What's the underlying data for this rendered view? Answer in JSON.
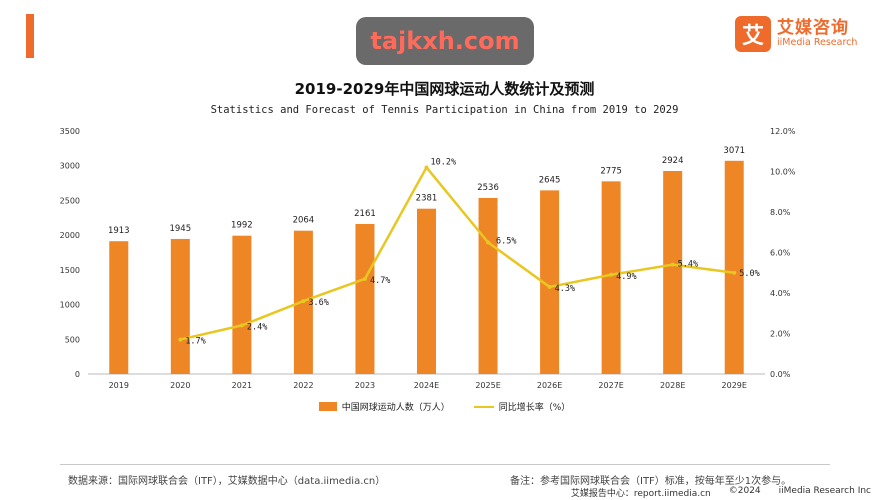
{
  "header": {
    "watermark": "tajkxh.com",
    "logo_mark": "艾",
    "logo_cn": "艾媒咨询",
    "logo_en": "iiMedia Research"
  },
  "chart_data": {
    "type": "bar",
    "title": "2019-2029年中国网球运动人数统计及预测",
    "subtitle": "Statistics and Forecast of Tennis Participation in China from 2019 to 2029",
    "categories": [
      "2019",
      "2020",
      "2021",
      "2022",
      "2023",
      "2024E",
      "2025E",
      "2026E",
      "2027E",
      "2028E",
      "2029E"
    ],
    "series": [
      {
        "name": "中国网球运动人数（万人）",
        "type": "bar",
        "axis": "left",
        "values": [
          1913,
          1945,
          1992,
          2064,
          2161,
          2381,
          2536,
          2645,
          2775,
          2924,
          3071
        ],
        "color": "#ee8626"
      },
      {
        "name": "同比增长率（%）",
        "type": "line",
        "axis": "right",
        "values": [
          null,
          1.7,
          2.4,
          3.6,
          4.7,
          10.2,
          6.5,
          4.3,
          4.9,
          5.4,
          5.0
        ],
        "labels": [
          "",
          "1.7%",
          "2.4%",
          "3.6%",
          "4.7%",
          "10.2%",
          "6.5%",
          "4.3%",
          "4.9%",
          "5.4%",
          "5.0%"
        ],
        "color": "#e8c721"
      }
    ],
    "y_left": {
      "range": [
        0,
        3500
      ],
      "ticks": [
        "0",
        "500",
        "1000",
        "1500",
        "2000",
        "2500",
        "3000",
        "3500"
      ]
    },
    "y_right": {
      "range": [
        0,
        12
      ],
      "ticks": [
        "0.0%",
        "2.0%",
        "4.0%",
        "6.0%",
        "8.0%",
        "10.0%",
        "12.0%"
      ]
    },
    "grid": false,
    "legend_position": "bottom-center"
  },
  "footer": {
    "source": "数据来源：国际网球联合会（ITF），艾媒数据中心（data.iimedia.cn）",
    "note": "备注：参考国际网球联合会（ITF）标准，按每年至少1次参与。",
    "site": "艾媒报告中心：report.iimedia.cn",
    "copyright": "©2024",
    "company": "iiMedia Research  Inc"
  }
}
